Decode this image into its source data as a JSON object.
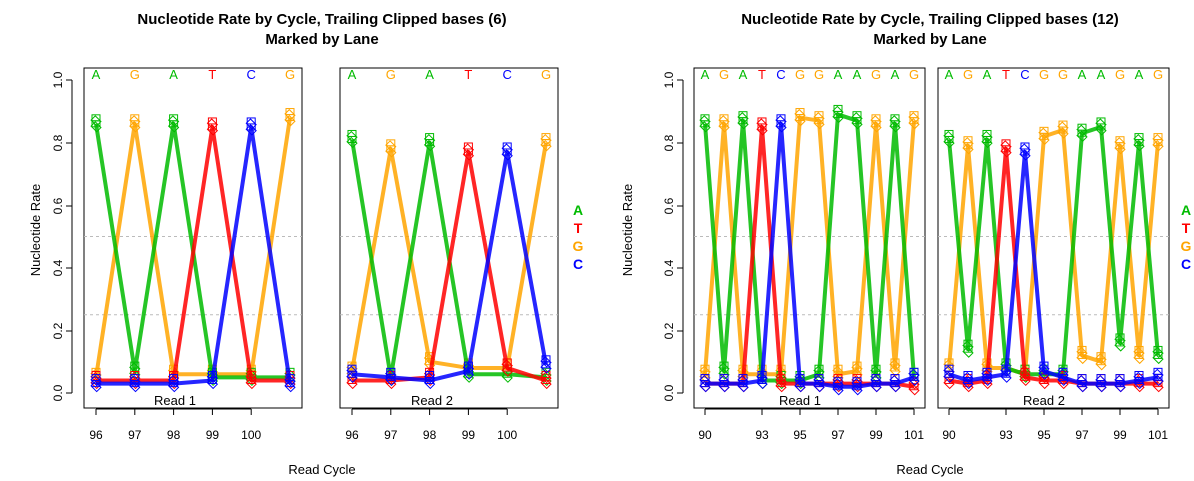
{
  "colors": {
    "A": "#00bb00",
    "T": "#ff0000",
    "G": "#ffa500",
    "C": "#0000ff"
  },
  "chart_data": [
    {
      "type": "line",
      "title_line1": "Nucleotide Rate by Cycle, Trailing Clipped bases (6)",
      "title_line2": "Marked by Lane",
      "xlabel": "Read Cycle",
      "ylabel": "Nucleotide Rate",
      "ylim": [
        0,
        1
      ],
      "y_ticks": [
        "0.0",
        "0.2",
        "0.4",
        "0.6",
        "0.8",
        "1.0"
      ],
      "hlines": [
        0.25,
        0.5
      ],
      "legend": [
        "A",
        "T",
        "G",
        "C"
      ],
      "legend_position": "right",
      "panels": [
        {
          "label": "Read 1",
          "x": [
            96,
            97,
            98,
            99,
            100,
            101
          ],
          "x_tick_labels": [
            "96",
            "97",
            "98",
            "99",
            "100"
          ],
          "bases_top": [
            "A",
            "G",
            "A",
            "T",
            "C",
            "G"
          ],
          "series": [
            {
              "name": "A",
              "values": [
                0.86,
                0.07,
                0.86,
                0.05,
                0.05,
                0.05
              ]
            },
            {
              "name": "T",
              "values": [
                0.04,
                0.04,
                0.04,
                0.85,
                0.04,
                0.04
              ]
            },
            {
              "name": "G",
              "values": [
                0.05,
                0.86,
                0.06,
                0.06,
                0.06,
                0.88
              ]
            },
            {
              "name": "C",
              "values": [
                0.03,
                0.03,
                0.03,
                0.04,
                0.85,
                0.03
              ]
            }
          ]
        },
        {
          "label": "Read 2",
          "x": [
            96,
            97,
            98,
            99,
            100,
            101
          ],
          "x_tick_labels": [
            "96",
            "97",
            "98",
            "99",
            "100"
          ],
          "bases_top": [
            "A",
            "G",
            "A",
            "T",
            "C",
            "G"
          ],
          "series": [
            {
              "name": "A",
              "values": [
                0.81,
                0.05,
                0.8,
                0.06,
                0.06,
                0.05
              ]
            },
            {
              "name": "T",
              "values": [
                0.04,
                0.04,
                0.05,
                0.77,
                0.08,
                0.04
              ]
            },
            {
              "name": "G",
              "values": [
                0.07,
                0.78,
                0.1,
                0.08,
                0.08,
                0.8
              ]
            },
            {
              "name": "C",
              "values": [
                0.06,
                0.05,
                0.04,
                0.07,
                0.77,
                0.09
              ]
            }
          ]
        }
      ]
    },
    {
      "type": "line",
      "title_line1": "Nucleotide Rate by Cycle, Trailing Clipped bases (12)",
      "title_line2": "Marked by Lane",
      "xlabel": "Read Cycle",
      "ylabel": "Nucleotide Rate",
      "ylim": [
        0,
        1
      ],
      "y_ticks": [
        "0.0",
        "0.2",
        "0.4",
        "0.6",
        "0.8",
        "1.0"
      ],
      "hlines": [
        0.25,
        0.5
      ],
      "legend": [
        "A",
        "T",
        "G",
        "C"
      ],
      "legend_position": "right",
      "panels": [
        {
          "label": "Read 1",
          "x": [
            90,
            91,
            92,
            93,
            94,
            95,
            96,
            97,
            98,
            99,
            100,
            101
          ],
          "x_tick_labels": [
            "90",
            "93",
            "95",
            "97",
            "99",
            "101"
          ],
          "x_tick_values": [
            90,
            93,
            95,
            97,
            99,
            101
          ],
          "bases_top": [
            "A",
            "G",
            "A",
            "T",
            "C",
            "G",
            "G",
            "A",
            "A",
            "G",
            "A",
            "G"
          ],
          "series": [
            {
              "name": "A",
              "values": [
                0.86,
                0.07,
                0.87,
                0.04,
                0.04,
                0.04,
                0.06,
                0.89,
                0.87,
                0.06,
                0.86,
                0.05
              ]
            },
            {
              "name": "T",
              "values": [
                0.03,
                0.03,
                0.03,
                0.85,
                0.03,
                0.03,
                0.03,
                0.03,
                0.03,
                0.03,
                0.03,
                0.02
              ]
            },
            {
              "name": "G",
              "values": [
                0.06,
                0.86,
                0.06,
                0.06,
                0.06,
                0.88,
                0.87,
                0.06,
                0.07,
                0.86,
                0.08,
                0.87
              ]
            },
            {
              "name": "C",
              "values": [
                0.03,
                0.03,
                0.03,
                0.04,
                0.86,
                0.03,
                0.03,
                0.02,
                0.02,
                0.03,
                0.03,
                0.05
              ]
            }
          ]
        },
        {
          "label": "Read 2",
          "x": [
            90,
            91,
            92,
            93,
            94,
            95,
            96,
            97,
            98,
            99,
            100,
            101
          ],
          "x_tick_labels": [
            "90",
            "93",
            "95",
            "97",
            "99",
            "101"
          ],
          "x_tick_values": [
            90,
            93,
            95,
            97,
            99,
            101
          ],
          "bases_top": [
            "A",
            "G",
            "A",
            "T",
            "C",
            "G",
            "G",
            "A",
            "A",
            "G",
            "A",
            "G"
          ],
          "series": [
            {
              "name": "A",
              "values": [
                0.81,
                0.14,
                0.81,
                0.08,
                0.06,
                0.06,
                0.06,
                0.83,
                0.85,
                0.16,
                0.8,
                0.12
              ]
            },
            {
              "name": "T",
              "values": [
                0.04,
                0.03,
                0.04,
                0.78,
                0.05,
                0.04,
                0.04,
                0.03,
                0.03,
                0.03,
                0.03,
                0.03
              ]
            },
            {
              "name": "G",
              "values": [
                0.08,
                0.79,
                0.08,
                0.08,
                0.06,
                0.82,
                0.84,
                0.12,
                0.1,
                0.79,
                0.12,
                0.8
              ]
            },
            {
              "name": "C",
              "values": [
                0.06,
                0.04,
                0.05,
                0.06,
                0.77,
                0.07,
                0.05,
                0.03,
                0.03,
                0.03,
                0.04,
                0.05
              ]
            }
          ]
        }
      ]
    }
  ]
}
